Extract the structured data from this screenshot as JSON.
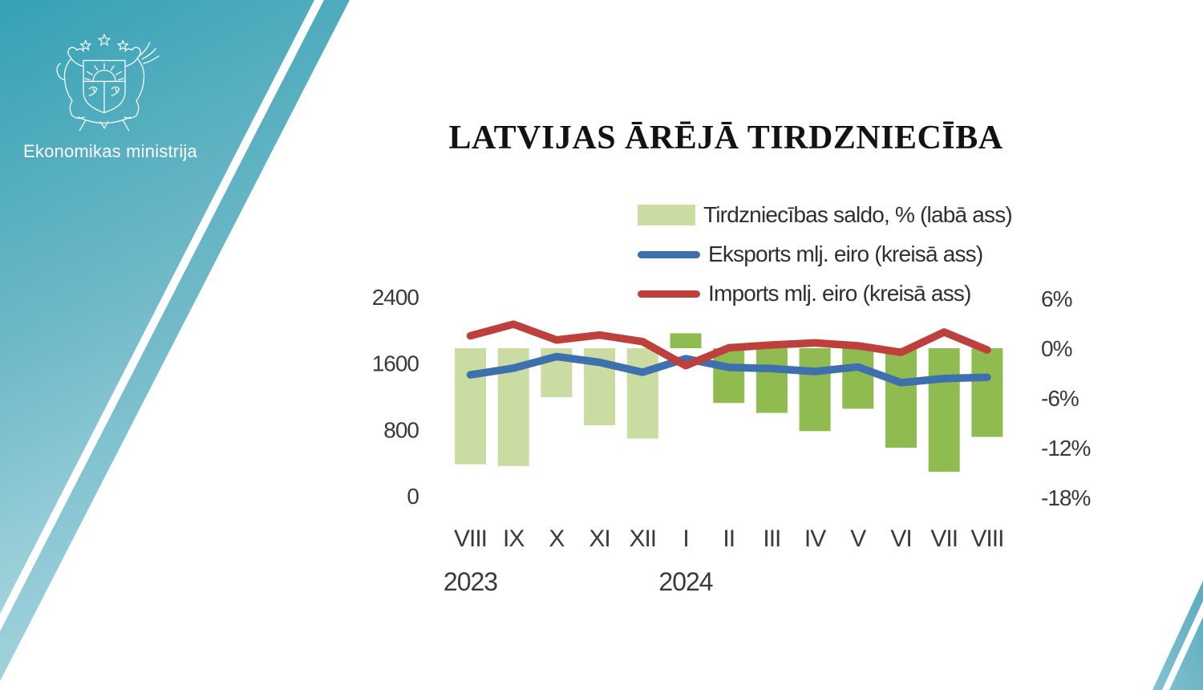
{
  "brand": {
    "org_name": "Ekonomikas ministrija",
    "emblem": "latvian-coat-of-arms"
  },
  "title": "LATVIJAS ĀRĒJĀ TIRDZNIECĪBA",
  "colors": {
    "teal_top": "#35a1b4",
    "teal_bottom": "#a9d6df",
    "wedge_top": "#58acbe",
    "wedge_bottom": "#85c2cf",
    "background": "#ffffff",
    "axis_text": "#3a3a3a",
    "title_text": "#121212",
    "bar_2023": "#cbdca2",
    "bar_2024": "#90bb51",
    "exports_line": "#3e70ae",
    "imports_line": "#be403d"
  },
  "chart_data": {
    "type": "bar+line",
    "title": "LATVIJAS ĀRĒJĀ TIRDZNIECĪBA",
    "categories": [
      "VIII",
      "IX",
      "X",
      "XI",
      "XII",
      "I",
      "II",
      "III",
      "IV",
      "V",
      "VI",
      "VII",
      "VIII"
    ],
    "year_groups": [
      {
        "label": "2023",
        "start_index": 0
      },
      {
        "label": "2024",
        "start_index": 5
      }
    ],
    "bar_colors": [
      "#cbdca2",
      "#90bb51"
    ],
    "series": [
      {
        "name": "Tirdzniecības saldo, % (labā ass)",
        "type": "bar",
        "axis": "right",
        "unit": "%",
        "values": [
          -14.0,
          -14.2,
          -5.9,
          -9.3,
          -10.9,
          1.8,
          -6.6,
          -7.8,
          -10.0,
          -7.3,
          -12.0,
          -14.9,
          -10.7
        ]
      },
      {
        "name": "Eksports mlj. eiro (kreisā ass)",
        "type": "line",
        "axis": "left",
        "unit": "mlj. eiro",
        "color": "#3e70ae",
        "values": [
          1460,
          1540,
          1680,
          1610,
          1490,
          1655,
          1550,
          1535,
          1500,
          1555,
          1365,
          1415,
          1430
        ]
      },
      {
        "name": "Imports mlj. eiro (kreisā ass)",
        "type": "line",
        "axis": "left",
        "unit": "mlj. eiro",
        "color": "#be403d",
        "values": [
          1930,
          2070,
          1880,
          1940,
          1860,
          1570,
          1785,
          1820,
          1845,
          1810,
          1730,
          1975,
          1760
        ]
      }
    ],
    "left_axis": {
      "ticks": [
        0,
        800,
        1600,
        2400
      ],
      "labels": [
        "0",
        "800",
        "1600",
        "2400"
      ],
      "range": [
        0,
        2400
      ]
    },
    "right_axis": {
      "ticks": [
        6,
        0,
        -6,
        -12,
        -18
      ],
      "labels": [
        "6%",
        "0%",
        "-6%",
        "-12%",
        "-18%"
      ],
      "range": [
        -18,
        6
      ]
    },
    "grid": false,
    "legend_position": "top-right"
  }
}
